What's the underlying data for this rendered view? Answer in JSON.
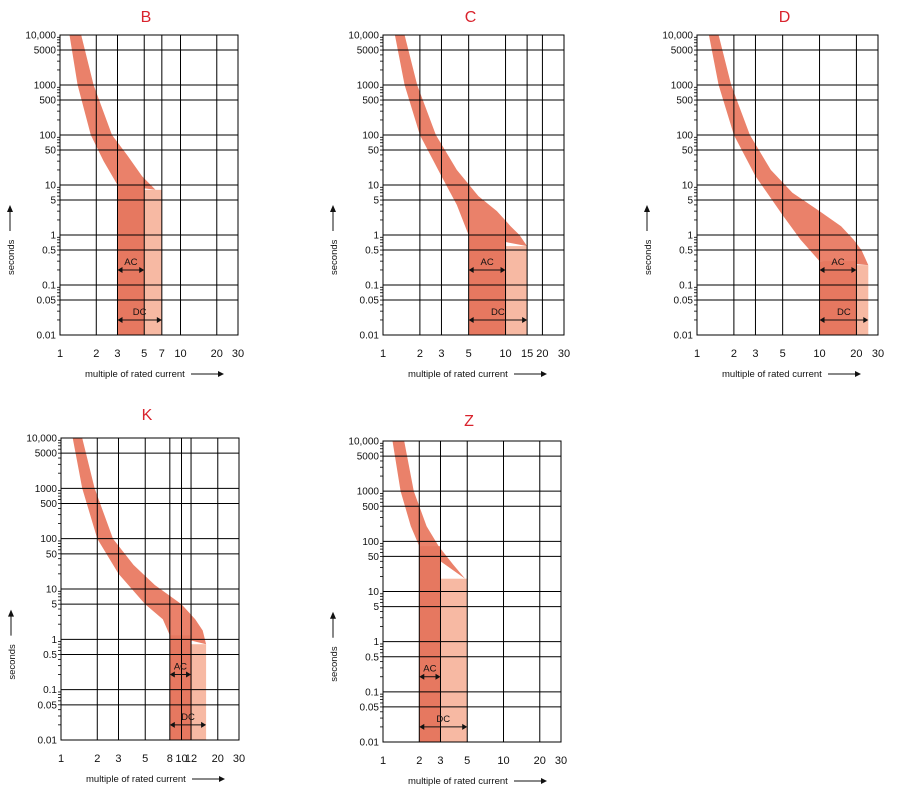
{
  "chart_data": [
    {
      "type": "area",
      "title": "B",
      "xlabel": "multiple of rated current",
      "ylabel": "seconds",
      "xscale": "log",
      "yscale": "log",
      "xlim": [
        1,
        30
      ],
      "ylim": [
        0.01,
        10000
      ],
      "xticks": [
        1,
        2,
        3,
        5,
        7,
        10,
        20,
        30
      ],
      "xtick_labels": [
        "1",
        "2",
        "3",
        "5",
        "7",
        "10",
        "20",
        "30"
      ],
      "yticks": [
        0.01,
        0.05,
        0.1,
        0.5,
        1,
        5,
        10,
        50,
        100,
        500,
        1000,
        5000,
        10000
      ],
      "ytick_labels": [
        "0.01",
        "0.05",
        "0.1",
        "0.5",
        "1",
        "5",
        "10",
        "50",
        "100",
        "500",
        "1000",
        "5000",
        "10,000"
      ],
      "thermal_band": {
        "left": [
          [
            1.2,
            10000
          ],
          [
            1.4,
            1000
          ],
          [
            1.8,
            100
          ],
          [
            2.3,
            30
          ],
          [
            3,
            10
          ]
        ],
        "right": [
          [
            1.5,
            10000
          ],
          [
            1.9,
            1000
          ],
          [
            2.7,
            100
          ],
          [
            3.6,
            40
          ],
          [
            4.8,
            15
          ],
          [
            6.2,
            8
          ]
        ]
      },
      "magnetic_ac": [
        3,
        5
      ],
      "magnetic_dc": [
        3,
        7
      ],
      "ac_label": "AC",
      "dc_label": "DC"
    },
    {
      "type": "area",
      "title": "C",
      "xlabel": "multiple of rated current",
      "ylabel": "seconds",
      "xscale": "log",
      "yscale": "log",
      "xlim": [
        1,
        30
      ],
      "ylim": [
        0.01,
        10000
      ],
      "xticks": [
        1,
        2,
        3,
        5,
        10,
        15,
        20,
        30
      ],
      "xtick_labels": [
        "1",
        "2",
        "3",
        "5",
        "10",
        "15",
        "20",
        "30"
      ],
      "yticks": [
        0.01,
        0.05,
        0.1,
        0.5,
        1,
        5,
        10,
        50,
        100,
        500,
        1000,
        5000,
        10000
      ],
      "ytick_labels": [
        "0.01",
        "0.05",
        "0.1",
        "0.5",
        "1",
        "5",
        "10",
        "50",
        "100",
        "500",
        "1000",
        "5000",
        "10,000"
      ],
      "thermal_band": {
        "left": [
          [
            1.25,
            10000
          ],
          [
            1.5,
            1000
          ],
          [
            2,
            100
          ],
          [
            3,
            15
          ],
          [
            4,
            4
          ],
          [
            5,
            1
          ]
        ],
        "right": [
          [
            1.5,
            10000
          ],
          [
            1.9,
            1000
          ],
          [
            2.7,
            100
          ],
          [
            4,
            20
          ],
          [
            6,
            6
          ],
          [
            8.5,
            3
          ],
          [
            11,
            1.5
          ],
          [
            13,
            1
          ],
          [
            15,
            0.6
          ]
        ]
      },
      "magnetic_ac": [
        5,
        10
      ],
      "magnetic_dc": [
        5,
        15
      ],
      "ac_label": "AC",
      "dc_label": "DC"
    },
    {
      "type": "area",
      "title": "D",
      "xlabel": "multiple of rated current",
      "ylabel": "seconds",
      "xscale": "log",
      "yscale": "log",
      "xlim": [
        1,
        30
      ],
      "ylim": [
        0.01,
        10000
      ],
      "xticks": [
        1,
        2,
        3,
        5,
        10,
        20,
        30
      ],
      "xtick_labels": [
        "1",
        "2",
        "3",
        "5",
        "10",
        "20",
        "30"
      ],
      "yticks": [
        0.01,
        0.05,
        0.1,
        0.5,
        1,
        5,
        10,
        50,
        100,
        500,
        1000,
        5000,
        10000
      ],
      "ytick_labels": [
        "0.01",
        "0.05",
        "0.1",
        "0.5",
        "1",
        "5",
        "10",
        "50",
        "100",
        "500",
        "1000",
        "5000",
        "10,000"
      ],
      "thermal_band": {
        "left": [
          [
            1.25,
            10000
          ],
          [
            1.5,
            1000
          ],
          [
            2,
            100
          ],
          [
            3,
            15
          ],
          [
            5,
            2.5
          ],
          [
            7,
            0.8
          ],
          [
            10,
            0.3
          ]
        ],
        "right": [
          [
            1.5,
            10000
          ],
          [
            1.9,
            1000
          ],
          [
            2.7,
            100
          ],
          [
            4,
            20
          ],
          [
            6,
            7
          ],
          [
            10,
            3
          ],
          [
            15,
            1.5
          ],
          [
            19,
            0.8
          ],
          [
            22,
            0.5
          ],
          [
            25,
            0.25
          ]
        ]
      },
      "magnetic_ac": [
        10,
        20
      ],
      "magnetic_dc": [
        10,
        25
      ],
      "ac_label": "AC",
      "dc_label": "DC"
    },
    {
      "type": "area",
      "title": "K",
      "xlabel": "multiple of rated current",
      "ylabel": "seconds",
      "xscale": "log",
      "yscale": "log",
      "xlim": [
        1,
        30
      ],
      "ylim": [
        0.01,
        10000
      ],
      "xticks": [
        1,
        2,
        3,
        5,
        8,
        10,
        12,
        20,
        30
      ],
      "xtick_labels": [
        "1",
        "2",
        "3",
        "5",
        "8",
        "10",
        "12",
        "20",
        "30"
      ],
      "yticks": [
        0.01,
        0.05,
        0.1,
        0.5,
        1,
        5,
        10,
        50,
        100,
        500,
        1000,
        5000,
        10000
      ],
      "ytick_labels": [
        "0.01",
        "0.05",
        "0.1",
        "0.5",
        "1",
        "5",
        "10",
        "50",
        "100",
        "500",
        "1000",
        "5000",
        "10,000"
      ],
      "thermal_band": {
        "left": [
          [
            1.25,
            10000
          ],
          [
            1.5,
            1000
          ],
          [
            2,
            100
          ],
          [
            3,
            20
          ],
          [
            5,
            5
          ],
          [
            7,
            2.5
          ],
          [
            8,
            1.2
          ]
        ],
        "right": [
          [
            1.5,
            10000
          ],
          [
            1.9,
            1000
          ],
          [
            2.7,
            100
          ],
          [
            4,
            30
          ],
          [
            6,
            12
          ],
          [
            10,
            5
          ],
          [
            13,
            2.5
          ],
          [
            15,
            1.5
          ],
          [
            16,
            0.8
          ]
        ]
      },
      "magnetic_ac": [
        8,
        12
      ],
      "magnetic_dc": [
        8,
        16
      ],
      "ac_label": "AC",
      "dc_label": "DC"
    },
    {
      "type": "area",
      "title": "Z",
      "xlabel": "multiple of rated current",
      "ylabel": "seconds",
      "xscale": "log",
      "yscale": "log",
      "xlim": [
        1,
        30
      ],
      "ylim": [
        0.01,
        10000
      ],
      "xticks": [
        1,
        2,
        3,
        5,
        10,
        20,
        30
      ],
      "xtick_labels": [
        "1",
        "2",
        "3",
        "5",
        "10",
        "20",
        "30"
      ],
      "yticks": [
        0.01,
        0.05,
        0.1,
        0.5,
        1,
        5,
        10,
        50,
        100,
        500,
        1000,
        5000,
        10000
      ],
      "ytick_labels": [
        "0.01",
        "0.05",
        "0.1",
        "0.5",
        "1",
        "5",
        "10",
        "50",
        "100",
        "500",
        "1000",
        "5000",
        "10,000"
      ],
      "thermal_band": {
        "left": [
          [
            1.2,
            10000
          ],
          [
            1.4,
            1000
          ],
          [
            1.7,
            200
          ],
          [
            2,
            80
          ]
        ],
        "right": [
          [
            1.5,
            10000
          ],
          [
            1.8,
            1000
          ],
          [
            2.3,
            200
          ],
          [
            2.9,
            80
          ],
          [
            3.8,
            35
          ],
          [
            4.8,
            18
          ]
        ]
      },
      "magnetic_ac": [
        2,
        3
      ],
      "magnetic_dc": [
        2,
        5
      ],
      "ac_label": "AC",
      "dc_label": "DC"
    }
  ],
  "colors": {
    "title": "#d9232d",
    "thermal": "#e8735a",
    "magnetic_ac": "#e67860",
    "magnetic_dc": "#f7b9a3",
    "grid": "#000000",
    "text": "#111111"
  }
}
